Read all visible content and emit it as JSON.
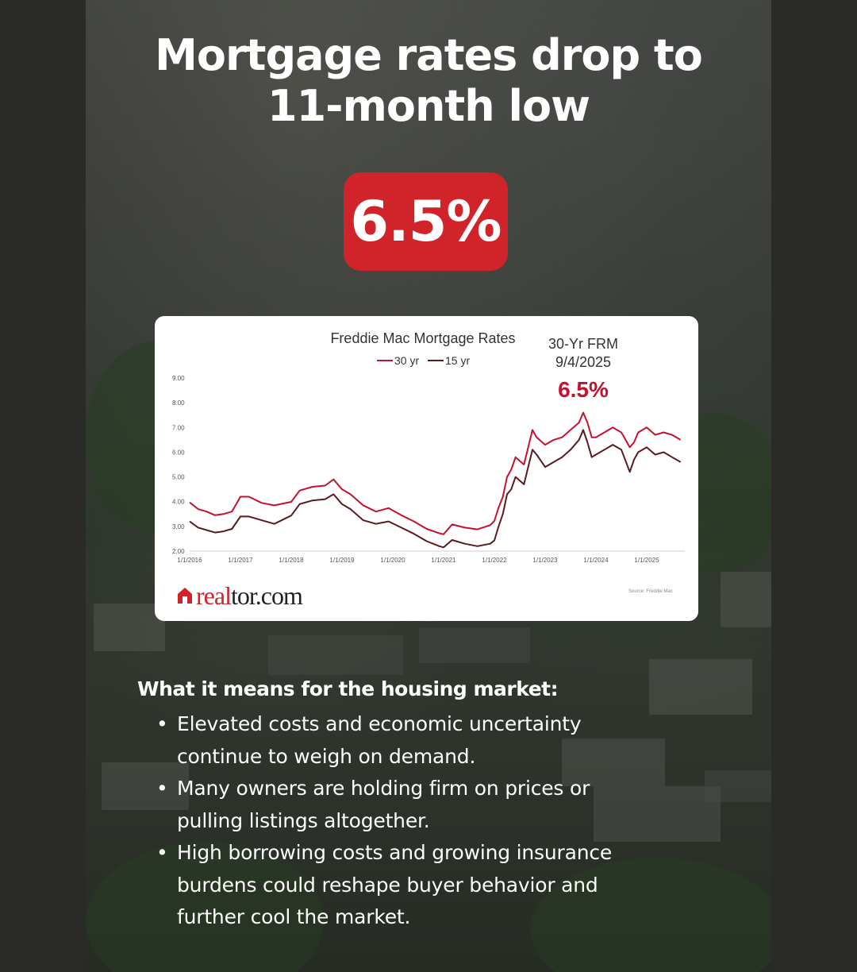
{
  "headline": {
    "line1": "Mortgage rates drop to",
    "line2": "11-month low"
  },
  "badge": {
    "value": "6.5%",
    "color": "#d0232a"
  },
  "chart_data": {
    "type": "line",
    "title": "Freddie Mac Mortgage Rates",
    "legend": {
      "placement": "top-center"
    },
    "series": [
      {
        "name": "30 yr",
        "color": "#c8102e",
        "x": [
          "2016-01",
          "2016-03",
          "2016-05",
          "2016-07",
          "2016-09",
          "2016-11",
          "2017-01",
          "2017-03",
          "2017-06",
          "2017-09",
          "2018-01",
          "2018-03",
          "2018-06",
          "2018-09",
          "2018-11",
          "2019-01",
          "2019-03",
          "2019-06",
          "2019-09",
          "2019-12",
          "2020-03",
          "2020-06",
          "2020-09",
          "2020-12",
          "2021-01",
          "2021-03",
          "2021-06",
          "2021-09",
          "2021-12",
          "2022-01",
          "2022-02",
          "2022-03",
          "2022-04",
          "2022-05",
          "2022-06",
          "2022-08",
          "2022-10",
          "2022-11",
          "2023-01",
          "2023-03",
          "2023-05",
          "2023-07",
          "2023-09",
          "2023-10",
          "2023-11",
          "2023-12",
          "2024-01",
          "2024-03",
          "2024-05",
          "2024-07",
          "2024-09",
          "2024-10",
          "2024-11",
          "2025-01",
          "2025-03",
          "2025-05",
          "2025-07",
          "2025-09"
        ],
        "y": [
          3.97,
          3.7,
          3.6,
          3.45,
          3.5,
          3.6,
          4.2,
          4.2,
          3.95,
          3.85,
          3.99,
          4.45,
          4.6,
          4.65,
          4.9,
          4.5,
          4.3,
          3.85,
          3.6,
          3.74,
          3.45,
          3.2,
          2.9,
          2.72,
          2.68,
          3.08,
          2.95,
          2.88,
          3.05,
          3.22,
          3.76,
          4.2,
          5.0,
          5.3,
          5.8,
          5.5,
          6.9,
          6.6,
          6.3,
          6.5,
          6.6,
          6.9,
          7.2,
          7.6,
          7.2,
          6.6,
          6.6,
          6.8,
          7.0,
          6.8,
          6.2,
          6.4,
          6.8,
          7.0,
          6.7,
          6.8,
          6.7,
          6.5
        ]
      },
      {
        "name": "15 yr",
        "color": "#5a1a1f",
        "x": [
          "2016-01",
          "2016-03",
          "2016-05",
          "2016-07",
          "2016-09",
          "2016-11",
          "2017-01",
          "2017-03",
          "2017-06",
          "2017-09",
          "2018-01",
          "2018-03",
          "2018-06",
          "2018-09",
          "2018-11",
          "2019-01",
          "2019-03",
          "2019-06",
          "2019-09",
          "2019-12",
          "2020-03",
          "2020-06",
          "2020-09",
          "2020-12",
          "2021-01",
          "2021-03",
          "2021-06",
          "2021-09",
          "2021-12",
          "2022-01",
          "2022-02",
          "2022-03",
          "2022-04",
          "2022-05",
          "2022-06",
          "2022-08",
          "2022-10",
          "2022-11",
          "2023-01",
          "2023-03",
          "2023-05",
          "2023-07",
          "2023-09",
          "2023-10",
          "2023-11",
          "2023-12",
          "2024-01",
          "2024-03",
          "2024-05",
          "2024-07",
          "2024-09",
          "2024-10",
          "2024-11",
          "2025-01",
          "2025-03",
          "2025-05",
          "2025-07",
          "2025-09"
        ],
        "y": [
          3.2,
          2.95,
          2.85,
          2.75,
          2.8,
          2.9,
          3.4,
          3.4,
          3.25,
          3.1,
          3.44,
          3.9,
          4.05,
          4.1,
          4.3,
          3.9,
          3.7,
          3.25,
          3.1,
          3.2,
          2.95,
          2.7,
          2.4,
          2.2,
          2.15,
          2.45,
          2.3,
          2.2,
          2.3,
          2.43,
          3.0,
          3.5,
          4.3,
          4.5,
          5.0,
          4.7,
          6.1,
          5.9,
          5.4,
          5.6,
          5.8,
          6.1,
          6.5,
          6.9,
          6.4,
          5.8,
          5.9,
          6.1,
          6.3,
          6.1,
          5.2,
          5.7,
          6.0,
          6.2,
          5.9,
          6.0,
          5.8,
          5.6
        ]
      }
    ],
    "y_ticks": [
      "2.00",
      "3.00",
      "4.00",
      "5.00",
      "6.00",
      "7.00",
      "8.00",
      "9.00"
    ],
    "x_ticks": [
      "1/1/2016",
      "1/1/2017",
      "1/1/2018",
      "1/1/2019",
      "1/1/2020",
      "1/1/2021",
      "1/1/2022",
      "1/1/2023",
      "1/1/2024",
      "1/1/2025"
    ],
    "ylim": [
      2,
      9
    ],
    "xlim": [
      "2016-01",
      "2025-10"
    ],
    "grid": false,
    "annotation": {
      "line1": "30-Yr FRM",
      "line2": "9/4/2025",
      "value": "6.5%",
      "value_color": "#c8102e"
    },
    "source": "Source: Freddie Mac"
  },
  "logo": {
    "text_red": "real",
    "text_dark": "tor.com",
    "icon": "house-icon"
  },
  "body": {
    "heading": "What it means for the housing market:",
    "bullets": [
      {
        "line1": "Elevated costs and economic uncertainty",
        "line2": "continue to weigh on demand."
      },
      {
        "line1": "Many owners are holding firm on prices or",
        "line2": "pulling listings altogether."
      },
      {
        "line1": "High borrowing costs and growing insurance",
        "line2": "burdens could reshape buyer behavior and",
        "line3": "further cool the market."
      }
    ]
  }
}
